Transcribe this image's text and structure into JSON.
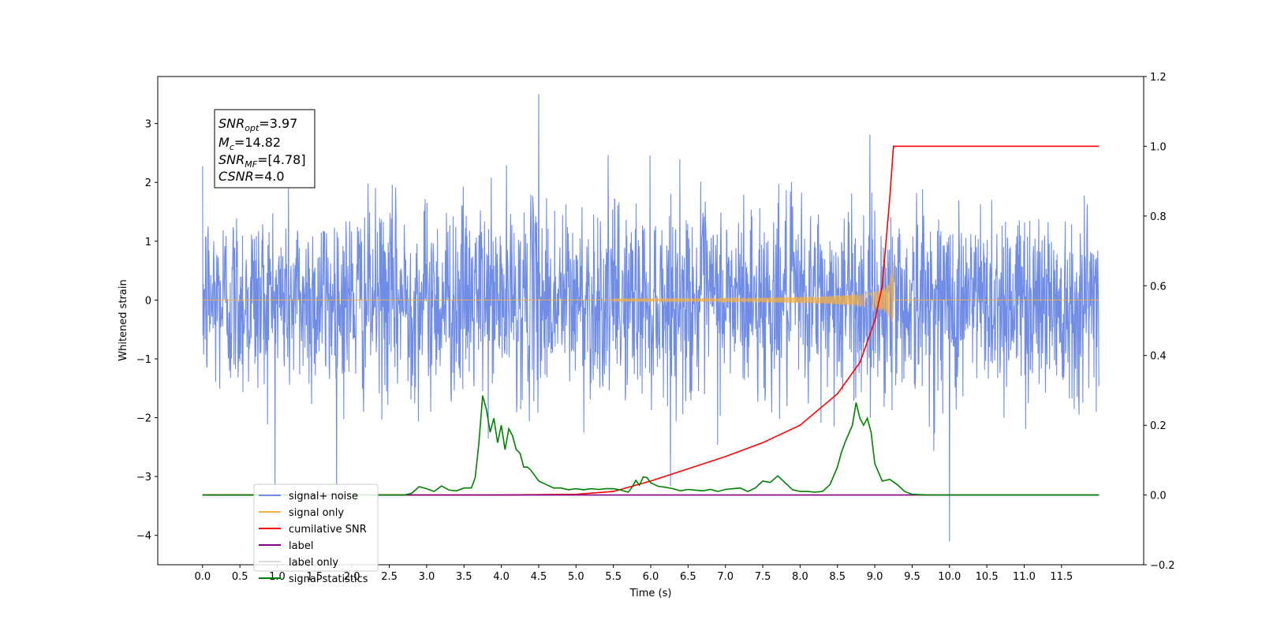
{
  "chart_data": {
    "type": "line",
    "title": "",
    "xlabel": "Time (s)",
    "ylabel": "Whitened strain",
    "xlim": [
      -0.6,
      12.6
    ],
    "ylim": [
      -4.5,
      3.8
    ],
    "y2lim": [
      -0.2,
      1.2
    ],
    "x_ticks": [
      "0.0",
      "0.5",
      "1.0",
      "1.5",
      "2.0",
      "2.5",
      "3.0",
      "3.5",
      "4.0",
      "4.5",
      "5.0",
      "5.5",
      "6.0",
      "6.5",
      "7.0",
      "7.5",
      "8.0",
      "8.5",
      "9.0",
      "9.5",
      "10.0",
      "10.5",
      "11.0",
      "11.5"
    ],
    "y_ticks": [
      "−4",
      "−3",
      "−2",
      "−1",
      "0",
      "1",
      "2",
      "3"
    ],
    "y2_ticks": [
      "−0.2",
      "0.0",
      "0.2",
      "0.4",
      "0.6",
      "0.8",
      "1.0",
      "1.2"
    ],
    "grid": false,
    "legend_position": "lower-left",
    "annotation": {
      "snr_opt": {
        "base": "SNR",
        "sub": "opt",
        "value": "=3.97"
      },
      "mc": {
        "base": "M",
        "sub": "c",
        "value": "=14.82"
      },
      "snr_mf": {
        "base": "SNR",
        "sub": "MF",
        "value": "=[4.78]"
      },
      "csnr": {
        "base": "CSNR",
        "value": "=4.0"
      }
    },
    "series": [
      {
        "name": "signal+ noise",
        "color": "#6f8ce6",
        "axis": "left",
        "description_range": [
          0,
          12.0
        ],
        "noise_std": 1.0,
        "noise_extremes": {
          "max": 3.5,
          "min": -4.1
        }
      },
      {
        "name": "signal only",
        "color": "#f5b041",
        "axis": "left",
        "chirp_start": 5.5,
        "merger_time": 9.25,
        "peak_amplitude": 0.72
      },
      {
        "name": "cumilative SNR",
        "color": "#ff0000",
        "axis": "right",
        "x": [
          0.0,
          4.0,
          5.0,
          5.5,
          6.0,
          6.5,
          7.0,
          7.5,
          8.0,
          8.5,
          8.8,
          9.0,
          9.1,
          9.2,
          9.25,
          12.0
        ],
        "y": [
          0.0,
          0.0,
          0.002,
          0.01,
          0.04,
          0.075,
          0.11,
          0.15,
          0.2,
          0.29,
          0.38,
          0.5,
          0.6,
          0.85,
          1.0,
          1.0
        ]
      },
      {
        "name": "label",
        "color": "#800080",
        "axis": "right",
        "x": [
          0.0,
          12.0
        ],
        "y": [
          0.0,
          0.0
        ]
      },
      {
        "name": "label only",
        "color": "#d9d9d9",
        "axis": "right",
        "x": [],
        "y": []
      },
      {
        "name": "signal statistics",
        "color": "#008000",
        "axis": "right",
        "x": [
          0.0,
          2.7,
          2.8,
          2.9,
          3.0,
          3.1,
          3.2,
          3.3,
          3.4,
          3.5,
          3.6,
          3.65,
          3.7,
          3.75,
          3.8,
          3.85,
          3.9,
          3.95,
          4.0,
          4.05,
          4.1,
          4.15,
          4.2,
          4.25,
          4.3,
          4.35,
          4.4,
          4.5,
          4.6,
          4.7,
          4.8,
          4.9,
          5.0,
          5.1,
          5.2,
          5.3,
          5.4,
          5.5,
          5.6,
          5.7,
          5.75,
          5.8,
          5.85,
          5.9,
          5.95,
          6.0,
          6.05,
          6.1,
          6.2,
          6.3,
          6.4,
          6.5,
          6.6,
          6.7,
          6.8,
          6.9,
          7.0,
          7.1,
          7.2,
          7.3,
          7.4,
          7.5,
          7.6,
          7.7,
          7.8,
          7.9,
          8.0,
          8.1,
          8.2,
          8.3,
          8.4,
          8.5,
          8.55,
          8.6,
          8.65,
          8.7,
          8.75,
          8.8,
          8.85,
          8.9,
          8.95,
          9.0,
          9.1,
          9.2,
          9.3,
          9.4,
          9.5,
          9.7,
          12.0
        ],
        "y": [
          0.0,
          0.0,
          0.005,
          0.024,
          0.018,
          0.01,
          0.026,
          0.014,
          0.012,
          0.02,
          0.02,
          0.05,
          0.15,
          0.285,
          0.245,
          0.18,
          0.22,
          0.15,
          0.2,
          0.13,
          0.19,
          0.17,
          0.13,
          0.12,
          0.08,
          0.08,
          0.07,
          0.04,
          0.03,
          0.02,
          0.02,
          0.015,
          0.018,
          0.015,
          0.018,
          0.016,
          0.018,
          0.018,
          0.014,
          0.008,
          0.022,
          0.042,
          0.028,
          0.052,
          0.05,
          0.035,
          0.03,
          0.025,
          0.022,
          0.018,
          0.012,
          0.016,
          0.014,
          0.012,
          0.016,
          0.01,
          0.016,
          0.018,
          0.02,
          0.01,
          0.02,
          0.04,
          0.036,
          0.055,
          0.035,
          0.015,
          0.01,
          0.01,
          0.008,
          0.01,
          0.03,
          0.08,
          0.12,
          0.15,
          0.175,
          0.2,
          0.265,
          0.22,
          0.2,
          0.22,
          0.18,
          0.09,
          0.04,
          0.045,
          0.03,
          0.01,
          0.002,
          0.0,
          0.0
        ]
      }
    ]
  }
}
